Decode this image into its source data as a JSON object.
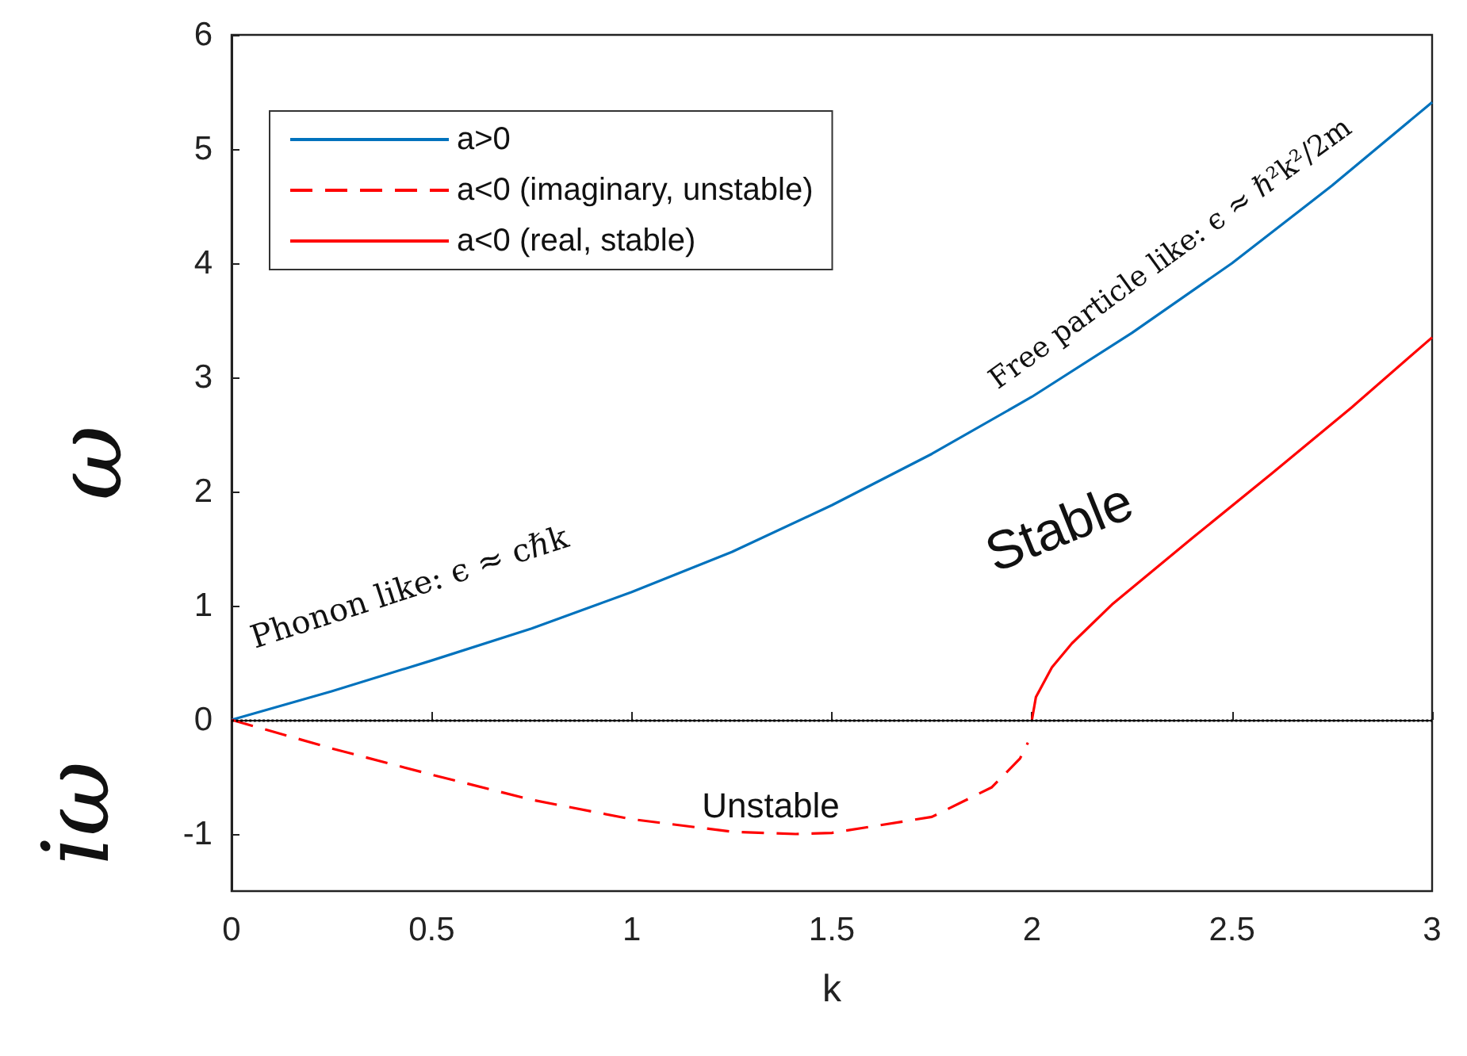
{
  "chart_data": {
    "type": "line",
    "xlabel": "k",
    "ylabel": "ω",
    "xlim": [
      0,
      3
    ],
    "xticks": [
      0,
      0.5,
      1,
      1.5,
      2,
      2.5,
      3
    ],
    "ylim": [
      -1.5,
      6
    ],
    "yticks": [
      -1,
      0,
      1,
      2,
      3,
      4,
      5,
      6
    ],
    "grid": false,
    "legend": "top left",
    "marker": "none",
    "series": [
      {
        "name": "a>0",
        "color": "#0072bd",
        "line_style": "solid",
        "x": [
          0,
          0.25,
          0.5,
          0.75,
          1,
          1.25,
          1.5,
          1.75,
          2,
          2.25,
          2.5,
          2.75,
          3
        ],
        "values": [
          0,
          0.25,
          0.52,
          0.8,
          1.12,
          1.47,
          1.88,
          2.33,
          2.83,
          3.39,
          4.0,
          4.68,
          5.41
        ]
      },
      {
        "name": "a<0 (imaginary, unstable)",
        "color": "#ff0000",
        "line_style": "dashed",
        "x": [
          0,
          0.25,
          0.5,
          0.75,
          1,
          1.25,
          1.41,
          1.5,
          1.75,
          1.9,
          1.97,
          1.99
        ],
        "values": [
          0,
          -0.25,
          -0.48,
          -0.7,
          -0.87,
          -0.98,
          -1.0,
          -0.99,
          -0.85,
          -0.59,
          -0.34,
          -0.2
        ]
      },
      {
        "name": "a<0 (real, stable)",
        "color": "#ff0000",
        "line_style": "solid",
        "x": [
          2,
          2.01,
          2.05,
          2.1,
          2.2,
          2.4,
          2.6,
          2.8,
          3
        ],
        "values": [
          0,
          0.2,
          0.46,
          0.67,
          1.01,
          1.59,
          2.16,
          2.74,
          3.35
        ]
      }
    ],
    "ref_lines": [
      {
        "axis": "y",
        "value": 0,
        "color": "#000000",
        "line_style": "dotted"
      }
    ],
    "annotations": [
      "Phonon like: ϵ ≈ cℏk",
      "Free particle like: ϵ ≈ ℏ²k²/2m",
      "Stable",
      "Unstable",
      "iω"
    ]
  }
}
